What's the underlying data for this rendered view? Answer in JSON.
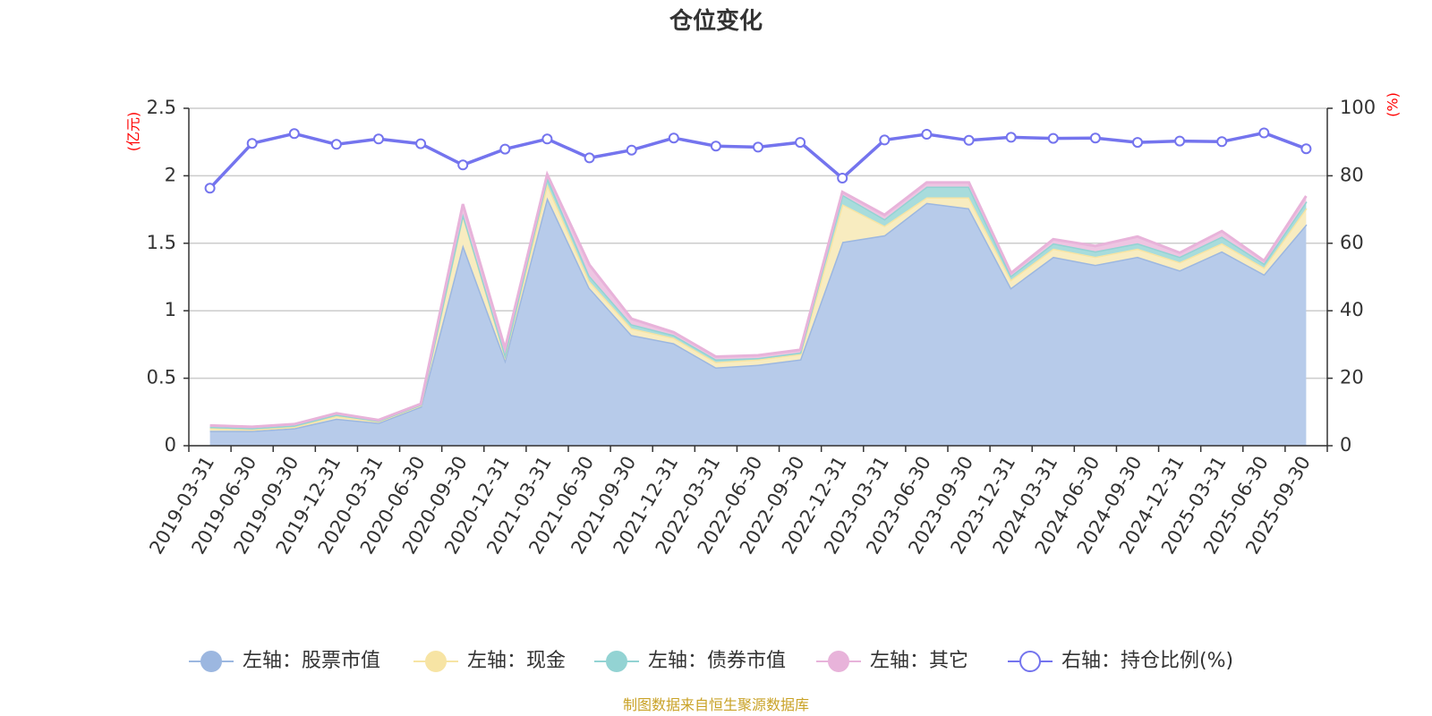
{
  "chart_data": {
    "type": "area",
    "title": "仓位变化",
    "left_axis_unit": "(亿元)",
    "right_axis_unit": "(%)",
    "ylim_left": [
      0,
      2.5
    ],
    "yticks_left": [
      "0",
      "0.5",
      "1",
      "1.5",
      "2",
      "2.5"
    ],
    "ylim_right": [
      0,
      100
    ],
    "yticks_right": [
      "0",
      "20",
      "40",
      "60",
      "80",
      "100"
    ],
    "grid": true,
    "legend_position": "bottom",
    "x": [
      "2019-03-31",
      "2019-06-30",
      "2019-09-30",
      "2019-12-31",
      "2020-03-31",
      "2020-06-30",
      "2020-09-30",
      "2020-12-31",
      "2021-03-31",
      "2021-06-30",
      "2021-09-30",
      "2021-12-31",
      "2022-03-31",
      "2022-06-30",
      "2022-09-30",
      "2022-12-31",
      "2023-03-31",
      "2023-06-30",
      "2023-09-30",
      "2023-12-31",
      "2024-03-31",
      "2024-06-30",
      "2024-09-30",
      "2024-12-31",
      "2025-03-31",
      "2025-06-30",
      "2025-09-30"
    ],
    "series": [
      {
        "name": "左轴：股票市值",
        "axis": "left",
        "stacked": true,
        "color": "#9cb7e0",
        "fill": "#b7cbea",
        "values": [
          0.11,
          0.11,
          0.13,
          0.2,
          0.17,
          0.29,
          1.49,
          0.64,
          1.84,
          1.17,
          0.82,
          0.76,
          0.58,
          0.6,
          0.64,
          1.51,
          1.56,
          1.8,
          1.76,
          1.17,
          1.4,
          1.34,
          1.4,
          1.3,
          1.44,
          1.27,
          1.64
        ]
      },
      {
        "name": "左轴：现金",
        "axis": "left",
        "stacked": true,
        "color": "#f7e4a4",
        "fill": "#f8ecc0",
        "values": [
          0.02,
          0.01,
          0.01,
          0.02,
          0.01,
          0.01,
          0.22,
          0.03,
          0.1,
          0.05,
          0.05,
          0.04,
          0.04,
          0.04,
          0.04,
          0.28,
          0.07,
          0.04,
          0.08,
          0.06,
          0.06,
          0.06,
          0.06,
          0.06,
          0.06,
          0.05,
          0.12
        ]
      },
      {
        "name": "左轴：债券市值",
        "axis": "left",
        "stacked": true,
        "color": "#93d3d3",
        "fill": "#a8dcdc",
        "values": [
          0.01,
          0.01,
          0.01,
          0.01,
          0.005,
          0.005,
          0.01,
          0.01,
          0.05,
          0.04,
          0.03,
          0.02,
          0.02,
          0.01,
          0.01,
          0.07,
          0.05,
          0.08,
          0.08,
          0.03,
          0.04,
          0.04,
          0.04,
          0.04,
          0.05,
          0.03,
          0.05
        ]
      },
      {
        "name": "左轴：其它",
        "axis": "left",
        "stacked": true,
        "color": "#e8b3da",
        "fill": "#eec5e2",
        "values": [
          0.01,
          0.01,
          0.01,
          0.01,
          0.005,
          0.005,
          0.07,
          0.04,
          0.02,
          0.08,
          0.04,
          0.02,
          0.02,
          0.02,
          0.02,
          0.02,
          0.03,
          0.03,
          0.03,
          0.02,
          0.03,
          0.04,
          0.05,
          0.03,
          0.04,
          0.02,
          0.04
        ]
      },
      {
        "name": "右轴：持仓比例(%)",
        "axis": "right",
        "stacked": false,
        "color": "#7474ee",
        "values": [
          76.3,
          89.6,
          92.5,
          89.3,
          90.9,
          89.5,
          83.2,
          87.9,
          90.9,
          85.3,
          87.6,
          91.2,
          88.8,
          88.5,
          89.9,
          79.3,
          90.6,
          92.3,
          90.5,
          91.4,
          91.1,
          91.2,
          89.9,
          90.3,
          90.1,
          92.7,
          88.0
        ]
      }
    ]
  },
  "source_text": "制图数据来自恒生聚源数据库"
}
